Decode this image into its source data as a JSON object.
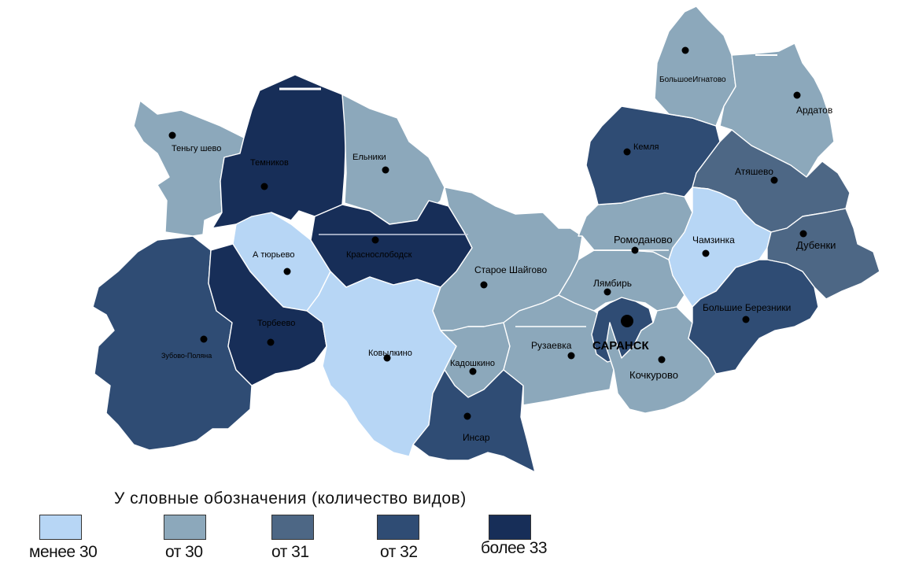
{
  "colors": {
    "c_lt30": "#b7d6f5",
    "c_30": "#8ca8bb",
    "c_31": "#4d6785",
    "c_32": "#2f4c74",
    "c_33": "#172e58"
  },
  "districts": [
    {
      "id": "tengushevo",
      "name": "Теньгу шево",
      "class": "от 30"
    },
    {
      "id": "temnikov",
      "name": "Темников",
      "class": "более 33"
    },
    {
      "id": "elniki",
      "name": "Ельники",
      "class": "от 30"
    },
    {
      "id": "bolsheignatovo",
      "name": "БольшоеИгнатово",
      "class": "от 30"
    },
    {
      "id": "ardatov",
      "name": "Ардатов",
      "class": "от 30"
    },
    {
      "id": "kemlya",
      "name": "Кемля",
      "class": "от 32"
    },
    {
      "id": "atyashevo",
      "name": "Атяшево",
      "class": "от 31"
    },
    {
      "id": "dubenki",
      "name": "Дубенки",
      "class": "от 31"
    },
    {
      "id": "chamzinka",
      "name": "Чамзинка",
      "class": "менее 30"
    },
    {
      "id": "romodanovo",
      "name": "Ромоданово",
      "class": "от 30"
    },
    {
      "id": "lyambir",
      "name": "Лямбирь",
      "class": "от 30"
    },
    {
      "id": "bbereznyaki",
      "name": "Большие Березники",
      "class": "от 32"
    },
    {
      "id": "saransk",
      "name": "САРАНСК",
      "class": "от 32"
    },
    {
      "id": "kochkurovo",
      "name": "Кочкурово",
      "class": "от 30"
    },
    {
      "id": "ruzaevka",
      "name": "Рузаевка",
      "class": "от 30"
    },
    {
      "id": "starshaigovo",
      "name": "Старое Шайгово",
      "class": "от 30"
    },
    {
      "id": "krasnoslobodsk",
      "name": "Краснослободск",
      "class": "более 33"
    },
    {
      "id": "atyurevo",
      "name": "А тюрьево",
      "class": "менее 30"
    },
    {
      "id": "torbeevo",
      "name": "Торбеево",
      "class": "более 33"
    },
    {
      "id": "zubovapolyana",
      "name": "Зубово-Поляна",
      "class": "от 32"
    },
    {
      "id": "kovylkino",
      "name": "Ковылкино",
      "class": "менее 30"
    },
    {
      "id": "kadoshkino",
      "name": "Кадошкино",
      "class": "от 30"
    },
    {
      "id": "insar",
      "name": "Инсар",
      "class": "от 32"
    }
  ],
  "legend": {
    "title": "У словные обозначения (количество видов)",
    "items": [
      {
        "label": "менее 30",
        "color": "#b7d6f5"
      },
      {
        "label": "от 30",
        "color": "#8ca8bb"
      },
      {
        "label": "от 31",
        "color": "#4d6785"
      },
      {
        "label": "от 32",
        "color": "#2f4c74"
      },
      {
        "label": "более 33",
        "color": "#172e58"
      }
    ]
  }
}
